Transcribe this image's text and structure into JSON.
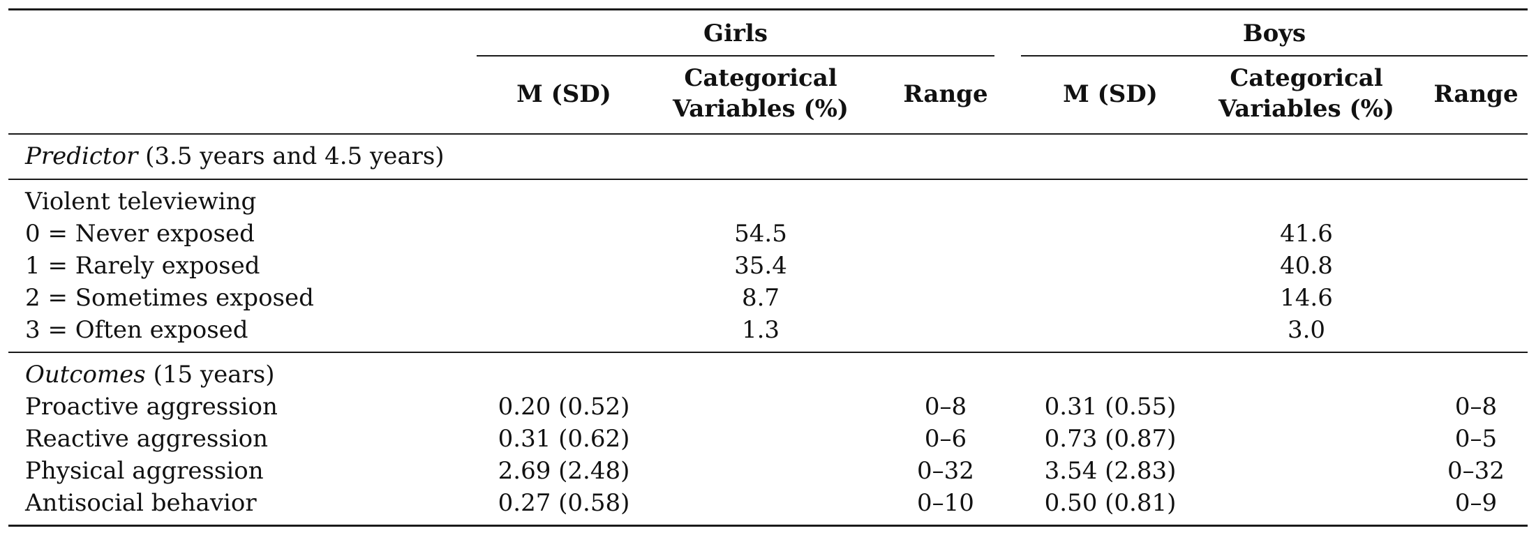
{
  "table": {
    "groups": {
      "girls": "Girls",
      "boys": "Boys"
    },
    "columns": {
      "girls_m_sd": "M (SD)",
      "girls_categorical_line1": "Categorical",
      "girls_categorical_line2": "Variables (%)",
      "girls_range": "Range",
      "boys_m_sd": "M (SD)",
      "boys_categorical_line1": "Categorical",
      "boys_categorical_line2": "Variables (%)",
      "boys_range": "Range"
    },
    "predictor_section": {
      "title_italic": "Predictor",
      "title_rest": " (3.5 years and 4.5 years)"
    },
    "predictor_variable": "Violent televiewing",
    "predictor_rows": [
      {
        "label": "0 = Never exposed",
        "girls_pct": "54.5",
        "boys_pct": "41.6"
      },
      {
        "label": "1 = Rarely exposed",
        "girls_pct": "35.4",
        "boys_pct": "40.8"
      },
      {
        "label": "2 = Sometimes exposed",
        "girls_pct": "8.7",
        "boys_pct": "14.6"
      },
      {
        "label": "3 = Often exposed",
        "girls_pct": "1.3",
        "boys_pct": "3.0"
      }
    ],
    "outcomes_section": {
      "title_italic": "Outcomes",
      "title_rest": " (15 years)"
    },
    "outcome_rows": [
      {
        "label": "Proactive aggression",
        "girls_msd": "0.20 (0.52)",
        "girls_range": "0–8",
        "boys_msd": "0.31 (0.55)",
        "boys_range": "0–8"
      },
      {
        "label": "Reactive aggression",
        "girls_msd": "0.31 (0.62)",
        "girls_range": "0–6",
        "boys_msd": "0.73 (0.87)",
        "boys_range": "0–5"
      },
      {
        "label": "Physical aggression",
        "girls_msd": "2.69 (2.48)",
        "girls_range": "0–32",
        "boys_msd": "3.54 (2.83)",
        "boys_range": "0–32"
      },
      {
        "label": "Antisocial behavior",
        "girls_msd": "0.27 (0.58)",
        "girls_range": "0–10",
        "boys_msd": "0.50 (0.81)",
        "boys_range": "0–9"
      }
    ]
  }
}
